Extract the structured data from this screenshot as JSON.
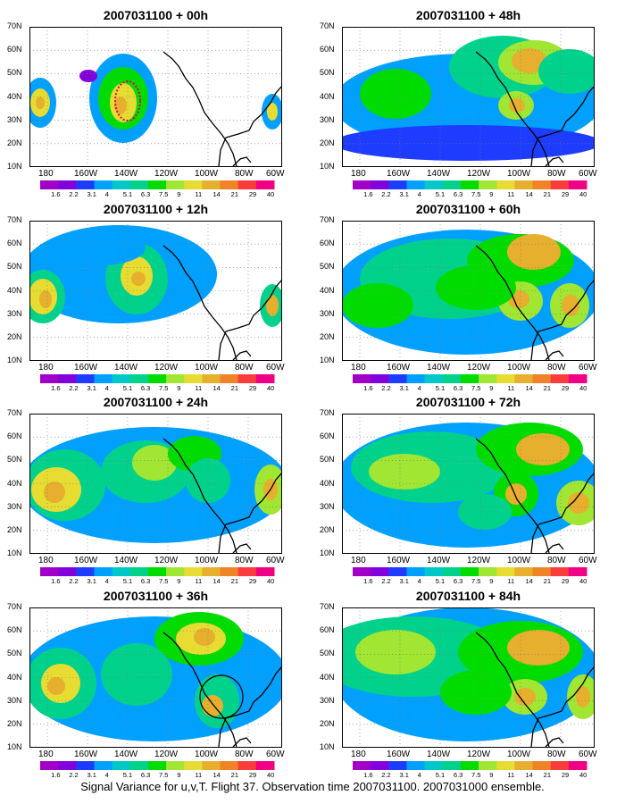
{
  "panels": [
    {
      "title": "2007031100 + 00h"
    },
    {
      "title": "2007031100 + 48h"
    },
    {
      "title": "2007031100 + 12h"
    },
    {
      "title": "2007031100 + 60h"
    },
    {
      "title": "2007031100 + 24h"
    },
    {
      "title": "2007031100 + 72h"
    },
    {
      "title": "2007031100 + 36h"
    },
    {
      "title": "2007031100 + 84h"
    }
  ],
  "lat_labels": [
    "70N",
    "60N",
    "50N",
    "40N",
    "30N",
    "20N",
    "10N"
  ],
  "lon_labels": [
    "180",
    "160W",
    "140W",
    "120W",
    "100W",
    "80W",
    "60W"
  ],
  "colorbar": {
    "labels": [
      "1.6",
      "2.2",
      "3.1",
      "4",
      "5.1",
      "6.3",
      "7.5",
      "9",
      "11",
      "14",
      "21",
      "29",
      "40"
    ],
    "colors": [
      "#a000c8",
      "#8200dc",
      "#1e3cff",
      "#00a0ff",
      "#00c8c8",
      "#00d28c",
      "#00dc00",
      "#a0e632",
      "#e6dc32",
      "#e6af2d",
      "#f08228",
      "#fa3c3c",
      "#f00082"
    ]
  },
  "footer": "Signal Variance for u,v,T. Flight 37. Observation time 2007031100. 2007031000 ensemble."
}
